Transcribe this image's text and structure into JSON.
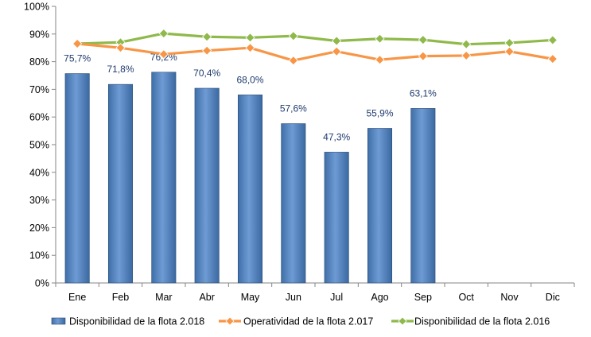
{
  "chart_data": {
    "type": "bar",
    "categories": [
      "Ene",
      "Feb",
      "Mar",
      "Abr",
      "May",
      "Jun",
      "Jul",
      "Ago",
      "Sep",
      "Oct",
      "Nov",
      "Dic"
    ],
    "y_ticks": [
      "0%",
      "10%",
      "20%",
      "30%",
      "40%",
      "50%",
      "60%",
      "70%",
      "80%",
      "90%",
      "100%"
    ],
    "ylim": [
      0,
      100
    ],
    "grid": false,
    "legend_position": "bottom",
    "series": [
      {
        "name": "Disponibilidad de la flota 2.018",
        "type": "bar",
        "color": "#4f81bd",
        "values": [
          75.7,
          71.8,
          76.2,
          70.4,
          68.0,
          57.6,
          47.3,
          55.9,
          63.1,
          null,
          null,
          null
        ],
        "labels": [
          "75,7%",
          "71,8%",
          "76,2%",
          "70,4%",
          "68,0%",
          "57,6%",
          "47,3%",
          "55,9%",
          "63,1%",
          "",
          "",
          ""
        ]
      },
      {
        "name": "Operatividad de la flota 2.017",
        "type": "line",
        "color": "#f79646",
        "values": [
          86.5,
          85.0,
          82.7,
          84.0,
          85.0,
          80.4,
          83.7,
          80.7,
          82.0,
          82.2,
          83.7,
          81.0
        ]
      },
      {
        "name": "Disponibilidad de la flota 2.016",
        "type": "line",
        "color": "#8fb94b",
        "values": [
          86.5,
          87.0,
          90.2,
          89.0,
          88.7,
          89.3,
          87.5,
          88.3,
          87.9,
          86.3,
          86.8,
          87.8
        ]
      }
    ]
  }
}
